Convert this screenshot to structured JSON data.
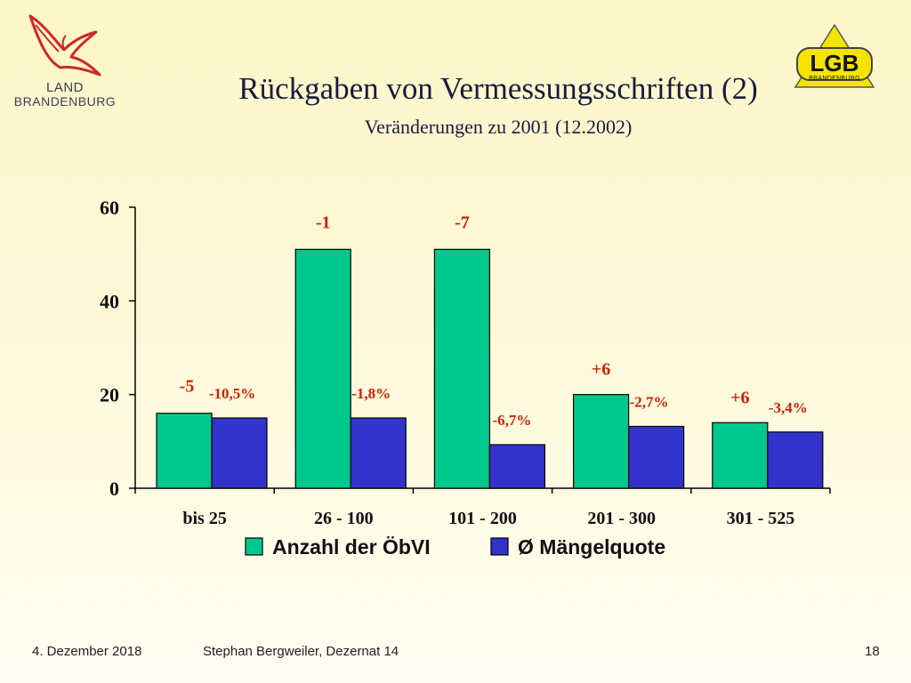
{
  "header": {
    "logo_left": {
      "line1": "LAND",
      "line2": "BRANDENBURG",
      "icon": "eagle-logo-icon"
    },
    "logo_right": {
      "mark": "LGB",
      "sub": "BRANDENBURG"
    },
    "title": "Rückgaben von Vermessungsschriften (2)",
    "subtitle": "Veränderungen zu 2001 (12.2002)"
  },
  "chart_data": {
    "type": "bar",
    "categories": [
      "bis 25",
      "26 - 100",
      "101 - 200",
      "201 - 300",
      "301 - 525"
    ],
    "series": [
      {
        "name": "Anzahl der ÖbVI",
        "color": "#00c88c",
        "values": [
          16,
          51,
          51,
          20,
          14
        ],
        "labels": [
          "-5",
          "-1",
          "-7",
          "+6",
          "+6"
        ]
      },
      {
        "name": "Ø Mängelquote",
        "color": "#3333cc",
        "values": [
          15,
          15,
          9.3,
          13.2,
          12
        ],
        "labels": [
          "-10,5%",
          "-1,8%",
          "-6,7%",
          "-2,7%",
          "-3,4%"
        ]
      }
    ],
    "yticks": [
      0,
      20,
      40,
      60
    ],
    "ylim": [
      0,
      60
    ],
    "label_color": "#cc2200",
    "legend_position": "bottom",
    "grid": false
  },
  "footer": {
    "date": "4. Dezember 2018",
    "author": "Stephan Bergweiler, Dezernat 14",
    "page": "18"
  }
}
